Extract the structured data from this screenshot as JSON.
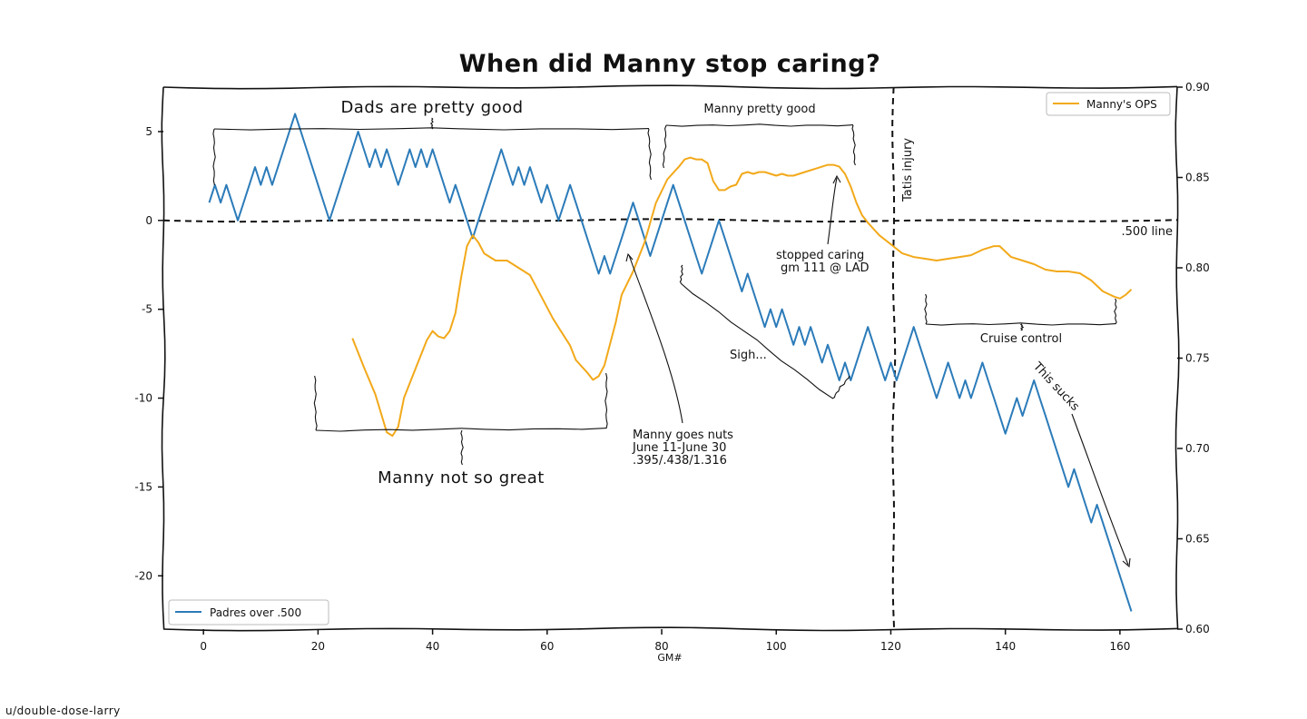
{
  "credit": "u/double-dose-larry",
  "chart_data": {
    "type": "line",
    "title": "When did Manny stop caring?",
    "xlabel": "GM#",
    "xlim": [
      -7,
      170
    ],
    "x_ticks": [
      0,
      20,
      40,
      60,
      80,
      100,
      120,
      140,
      160
    ],
    "y_left": {
      "lim": [
        -23,
        7.5
      ],
      "ticks": [
        5,
        0,
        -5,
        -10,
        -15,
        -20
      ]
    },
    "y_right": {
      "lim": [
        0.6,
        0.9
      ],
      "ticks": [
        0.9,
        0.85,
        0.8,
        0.75,
        0.7,
        0.65,
        0.6
      ]
    },
    "grid": false,
    "series": [
      {
        "name": "Padres over .500",
        "axis": "left",
        "color": "#2b7bb9",
        "legend": "bottom-left",
        "points": [
          [
            1,
            1
          ],
          [
            2,
            2
          ],
          [
            3,
            1
          ],
          [
            4,
            2
          ],
          [
            5,
            1
          ],
          [
            6,
            0
          ],
          [
            7,
            1
          ],
          [
            8,
            2
          ],
          [
            9,
            3
          ],
          [
            10,
            2
          ],
          [
            11,
            3
          ],
          [
            12,
            2
          ],
          [
            13,
            3
          ],
          [
            14,
            4
          ],
          [
            15,
            5
          ],
          [
            16,
            6
          ],
          [
            17,
            5
          ],
          [
            18,
            4
          ],
          [
            19,
            3
          ],
          [
            20,
            2
          ],
          [
            21,
            1
          ],
          [
            22,
            0
          ],
          [
            23,
            1
          ],
          [
            24,
            2
          ],
          [
            25,
            3
          ],
          [
            26,
            4
          ],
          [
            27,
            5
          ],
          [
            28,
            4
          ],
          [
            29,
            3
          ],
          [
            30,
            4
          ],
          [
            31,
            3
          ],
          [
            32,
            4
          ],
          [
            33,
            3
          ],
          [
            34,
            2
          ],
          [
            35,
            3
          ],
          [
            36,
            4
          ],
          [
            37,
            3
          ],
          [
            38,
            4
          ],
          [
            39,
            3
          ],
          [
            40,
            4
          ],
          [
            41,
            3
          ],
          [
            42,
            2
          ],
          [
            43,
            1
          ],
          [
            44,
            2
          ],
          [
            45,
            1
          ],
          [
            46,
            0
          ],
          [
            47,
            -1
          ],
          [
            48,
            0
          ],
          [
            49,
            1
          ],
          [
            50,
            2
          ],
          [
            51,
            3
          ],
          [
            52,
            4
          ],
          [
            53,
            3
          ],
          [
            54,
            2
          ],
          [
            55,
            3
          ],
          [
            56,
            2
          ],
          [
            57,
            3
          ],
          [
            58,
            2
          ],
          [
            59,
            1
          ],
          [
            60,
            2
          ],
          [
            61,
            1
          ],
          [
            62,
            0
          ],
          [
            63,
            1
          ],
          [
            64,
            2
          ],
          [
            65,
            1
          ],
          [
            66,
            0
          ],
          [
            67,
            -1
          ],
          [
            68,
            -2
          ],
          [
            69,
            -3
          ],
          [
            70,
            -2
          ],
          [
            71,
            -3
          ],
          [
            72,
            -2
          ],
          [
            73,
            -1
          ],
          [
            74,
            0
          ],
          [
            75,
            1
          ],
          [
            76,
            0
          ],
          [
            77,
            -1
          ],
          [
            78,
            -2
          ],
          [
            79,
            -1
          ],
          [
            80,
            0
          ],
          [
            81,
            1
          ],
          [
            82,
            2
          ],
          [
            83,
            1
          ],
          [
            84,
            0
          ],
          [
            85,
            -1
          ],
          [
            86,
            -2
          ],
          [
            87,
            -3
          ],
          [
            88,
            -2
          ],
          [
            89,
            -1
          ],
          [
            90,
            0
          ],
          [
            91,
            -1
          ],
          [
            92,
            -2
          ],
          [
            93,
            -3
          ],
          [
            94,
            -4
          ],
          [
            95,
            -3
          ],
          [
            96,
            -4
          ],
          [
            97,
            -5
          ],
          [
            98,
            -6
          ],
          [
            99,
            -5
          ],
          [
            100,
            -6
          ],
          [
            101,
            -5
          ],
          [
            102,
            -6
          ],
          [
            103,
            -7
          ],
          [
            104,
            -6
          ],
          [
            105,
            -7
          ],
          [
            106,
            -6
          ],
          [
            107,
            -7
          ],
          [
            108,
            -8
          ],
          [
            109,
            -7
          ],
          [
            110,
            -8
          ],
          [
            111,
            -9
          ],
          [
            112,
            -8
          ],
          [
            113,
            -9
          ],
          [
            114,
            -8
          ],
          [
            115,
            -7
          ],
          [
            116,
            -6
          ],
          [
            117,
            -7
          ],
          [
            118,
            -8
          ],
          [
            119,
            -9
          ],
          [
            120,
            -8
          ],
          [
            121,
            -9
          ],
          [
            122,
            -8
          ],
          [
            123,
            -7
          ],
          [
            124,
            -6
          ],
          [
            125,
            -7
          ],
          [
            126,
            -8
          ],
          [
            127,
            -9
          ],
          [
            128,
            -10
          ],
          [
            129,
            -9
          ],
          [
            130,
            -8
          ],
          [
            131,
            -9
          ],
          [
            132,
            -10
          ],
          [
            133,
            -9
          ],
          [
            134,
            -10
          ],
          [
            135,
            -9
          ],
          [
            136,
            -8
          ],
          [
            137,
            -9
          ],
          [
            138,
            -10
          ],
          [
            139,
            -11
          ],
          [
            140,
            -12
          ],
          [
            141,
            -11
          ],
          [
            142,
            -10
          ],
          [
            143,
            -11
          ],
          [
            144,
            -10
          ],
          [
            145,
            -9
          ],
          [
            146,
            -10
          ],
          [
            147,
            -11
          ],
          [
            148,
            -12
          ],
          [
            149,
            -13
          ],
          [
            150,
            -14
          ],
          [
            151,
            -15
          ],
          [
            152,
            -14
          ],
          [
            153,
            -15
          ],
          [
            154,
            -16
          ],
          [
            155,
            -17
          ],
          [
            156,
            -16
          ],
          [
            157,
            -17
          ],
          [
            158,
            -18
          ],
          [
            159,
            -19
          ],
          [
            160,
            -20
          ],
          [
            161,
            -21
          ],
          [
            162,
            -22
          ]
        ]
      },
      {
        "name": "Manny's OPS",
        "axis": "right",
        "color": "#f2a91a",
        "legend": "top-right",
        "points": [
          [
            26,
            0.761
          ],
          [
            28,
            0.745
          ],
          [
            30,
            0.73
          ],
          [
            32,
            0.709
          ],
          [
            33,
            0.707
          ],
          [
            34,
            0.712
          ],
          [
            35,
            0.728
          ],
          [
            37,
            0.744
          ],
          [
            39,
            0.76
          ],
          [
            40,
            0.765
          ],
          [
            41,
            0.762
          ],
          [
            42,
            0.761
          ],
          [
            43,
            0.765
          ],
          [
            44,
            0.775
          ],
          [
            45,
            0.795
          ],
          [
            46,
            0.812
          ],
          [
            47,
            0.818
          ],
          [
            48,
            0.814
          ],
          [
            49,
            0.808
          ],
          [
            50,
            0.806
          ],
          [
            51,
            0.804
          ],
          [
            53,
            0.804
          ],
          [
            55,
            0.8
          ],
          [
            57,
            0.796
          ],
          [
            59,
            0.784
          ],
          [
            61,
            0.772
          ],
          [
            62,
            0.767
          ],
          [
            64,
            0.757
          ],
          [
            65,
            0.749
          ],
          [
            67,
            0.742
          ],
          [
            68,
            0.738
          ],
          [
            69,
            0.74
          ],
          [
            70,
            0.746
          ],
          [
            72,
            0.77
          ],
          [
            73,
            0.785
          ],
          [
            75,
            0.798
          ],
          [
            77,
            0.814
          ],
          [
            79,
            0.836
          ],
          [
            81,
            0.849
          ],
          [
            83,
            0.856
          ],
          [
            84,
            0.86
          ],
          [
            85,
            0.861
          ],
          [
            86,
            0.86
          ],
          [
            87,
            0.86
          ],
          [
            88,
            0.858
          ],
          [
            89,
            0.848
          ],
          [
            90,
            0.843
          ],
          [
            91,
            0.843
          ],
          [
            92,
            0.845
          ],
          [
            93,
            0.846
          ],
          [
            94,
            0.852
          ],
          [
            95,
            0.853
          ],
          [
            96,
            0.852
          ],
          [
            97,
            0.853
          ],
          [
            98,
            0.853
          ],
          [
            99,
            0.852
          ],
          [
            100,
            0.851
          ],
          [
            101,
            0.852
          ],
          [
            102,
            0.851
          ],
          [
            103,
            0.851
          ],
          [
            104,
            0.852
          ],
          [
            105,
            0.853
          ],
          [
            106,
            0.854
          ],
          [
            107,
            0.855
          ],
          [
            108,
            0.856
          ],
          [
            109,
            0.857
          ],
          [
            110,
            0.857
          ],
          [
            111,
            0.856
          ],
          [
            112,
            0.852
          ],
          [
            113,
            0.845
          ],
          [
            114,
            0.836
          ],
          [
            115,
            0.829
          ],
          [
            116,
            0.825
          ],
          [
            118,
            0.818
          ],
          [
            120,
            0.813
          ],
          [
            122,
            0.808
          ],
          [
            124,
            0.806
          ],
          [
            126,
            0.805
          ],
          [
            128,
            0.804
          ],
          [
            130,
            0.805
          ],
          [
            132,
            0.806
          ],
          [
            134,
            0.807
          ],
          [
            136,
            0.81
          ],
          [
            138,
            0.812
          ],
          [
            139,
            0.812
          ],
          [
            141,
            0.806
          ],
          [
            143,
            0.804
          ],
          [
            145,
            0.802
          ],
          [
            147,
            0.799
          ],
          [
            149,
            0.798
          ],
          [
            151,
            0.798
          ],
          [
            153,
            0.797
          ],
          [
            155,
            0.793
          ],
          [
            157,
            0.787
          ],
          [
            159,
            0.784
          ],
          [
            160,
            0.783
          ],
          [
            161,
            0.785
          ],
          [
            162,
            0.788
          ]
        ]
      }
    ],
    "reference_lines": [
      {
        "orientation": "horizontal",
        "axis": "left",
        "value": 0,
        "label": ".500 line"
      },
      {
        "orientation": "vertical",
        "value": 120.5,
        "label": "Tatis injury"
      }
    ],
    "annotations": {
      "dads": "Dads are pretty good",
      "manny_pretty_good": "Manny pretty good",
      "stopped_caring": [
        "stopped caring",
        "gm 111 @ LAD"
      ],
      "manny_not_great": "Manny not so great",
      "manny_nuts": [
        "Manny goes nuts",
        "June 11-June 30",
        ".395/.438/1.316"
      ],
      "sigh": "Sigh...",
      "cruise": "Cruise control",
      "sucks": "This sucks"
    }
  }
}
